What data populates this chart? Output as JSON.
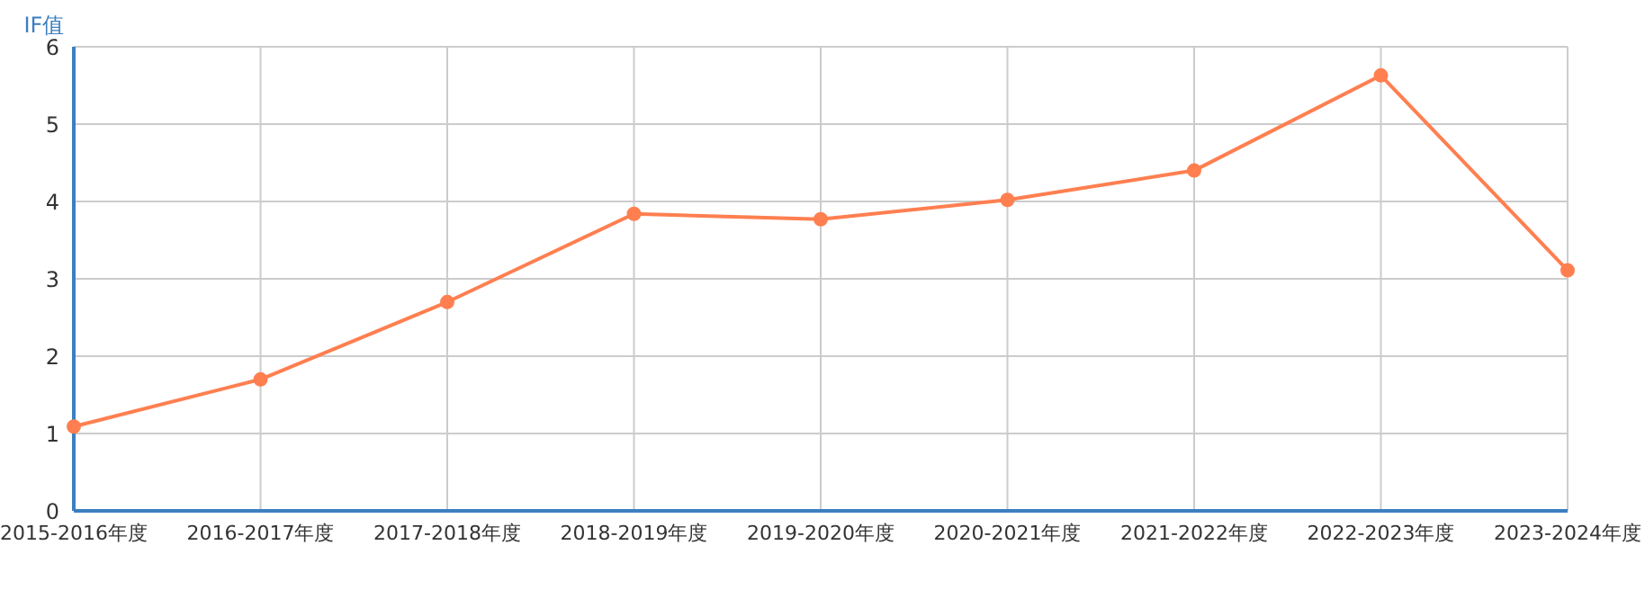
{
  "chart_data": {
    "type": "line",
    "ylabel": "IF值",
    "categories": [
      "2015-2016年度",
      "2016-2017年度",
      "2017-2018年度",
      "2018-2019年度",
      "2019-2020年度",
      "2020-2021年度",
      "2021-2022年度",
      "2022-2023年度",
      "2023-2024年度"
    ],
    "series": [
      {
        "color": "#ff7f50",
        "values": [
          1.09,
          1.7,
          2.7,
          3.84,
          3.77,
          4.02,
          4.4,
          5.63,
          3.11
        ]
      }
    ],
    "ylim": [
      0,
      6
    ],
    "yticks": [
      0,
      1,
      2,
      3,
      4,
      5,
      6
    ],
    "grid": true,
    "marker": "circle",
    "line_style": "solid",
    "legend": false
  }
}
